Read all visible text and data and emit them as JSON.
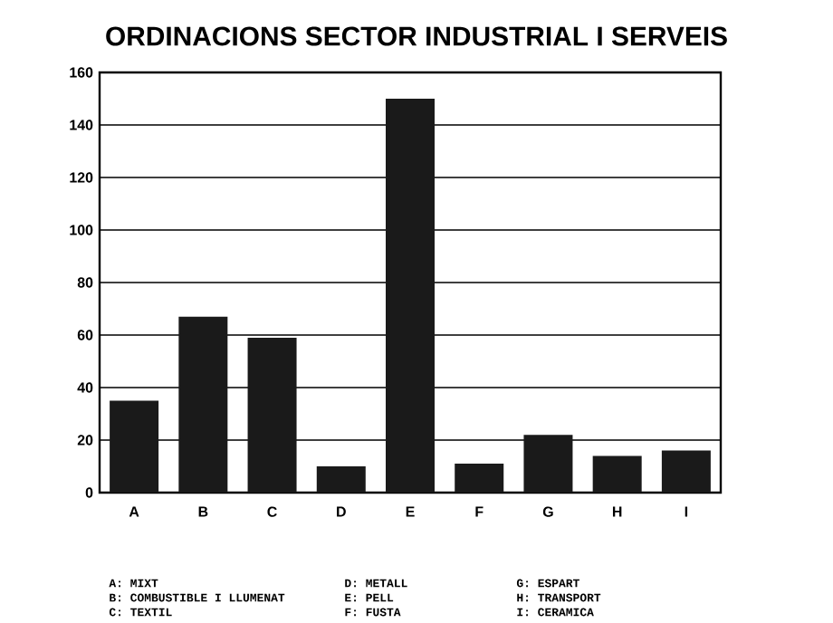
{
  "chart_data": {
    "type": "bar",
    "title": "ORDINACIONS SECTOR INDUSTRIAL I SERVEIS",
    "categories": [
      "A",
      "B",
      "C",
      "D",
      "E",
      "F",
      "G",
      "H",
      "I"
    ],
    "values": [
      35,
      67,
      59,
      10,
      150,
      11,
      22,
      14,
      16
    ],
    "color": "#1a1a1a",
    "ylim": [
      0,
      160
    ],
    "yticks": [
      0,
      20,
      40,
      60,
      80,
      100,
      120,
      140,
      160
    ],
    "grid": "y",
    "annotations": [
      "A: MIXT",
      "B: COMBUSTIBLE I LLUMENAT",
      "C: TEXTIL",
      "D: METALL",
      "E: PELL",
      "F: FUSTA",
      "G: ESPART",
      "H: TRANSPORT",
      "I: CERAMICA"
    ]
  }
}
